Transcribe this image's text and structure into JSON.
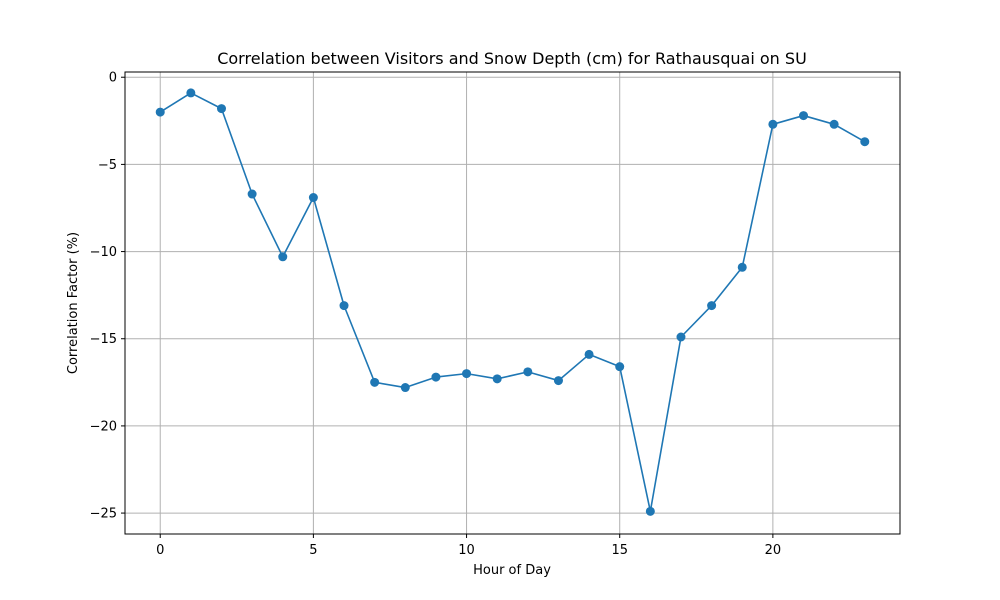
{
  "chart_data": {
    "type": "line",
    "title": "Correlation between Visitors and Snow Depth (cm) for Rathausquai on SU",
    "xlabel": "Hour of Day",
    "ylabel": "Correlation Factor (%)",
    "xlim": [
      -1.15,
      24.15
    ],
    "ylim": [
      -26.2,
      0.3
    ],
    "xticks": [
      0,
      5,
      10,
      15,
      20
    ],
    "yticks": [
      0,
      -5,
      -10,
      -15,
      -20,
      -25
    ],
    "xtick_labels": [
      "0",
      "5",
      "10",
      "15",
      "20"
    ],
    "ytick_labels": [
      "0",
      "−5",
      "−10",
      "−15",
      "−20",
      "−25"
    ],
    "grid": true,
    "series": [
      {
        "color": "#1f77b4",
        "marker": "circle",
        "x": [
          0,
          1,
          2,
          3,
          4,
          5,
          6,
          7,
          8,
          9,
          10,
          11,
          12,
          13,
          14,
          15,
          16,
          17,
          18,
          19,
          20,
          21,
          22,
          23
        ],
        "values": [
          -2.0,
          -0.9,
          -1.8,
          -6.7,
          -10.3,
          -6.9,
          -13.1,
          -17.5,
          -17.8,
          -17.2,
          -17.0,
          -17.3,
          -16.9,
          -17.4,
          -15.9,
          -16.6,
          -24.9,
          -14.9,
          -13.1,
          -10.9,
          -2.7,
          -2.2,
          -2.7,
          -3.7
        ]
      }
    ]
  }
}
